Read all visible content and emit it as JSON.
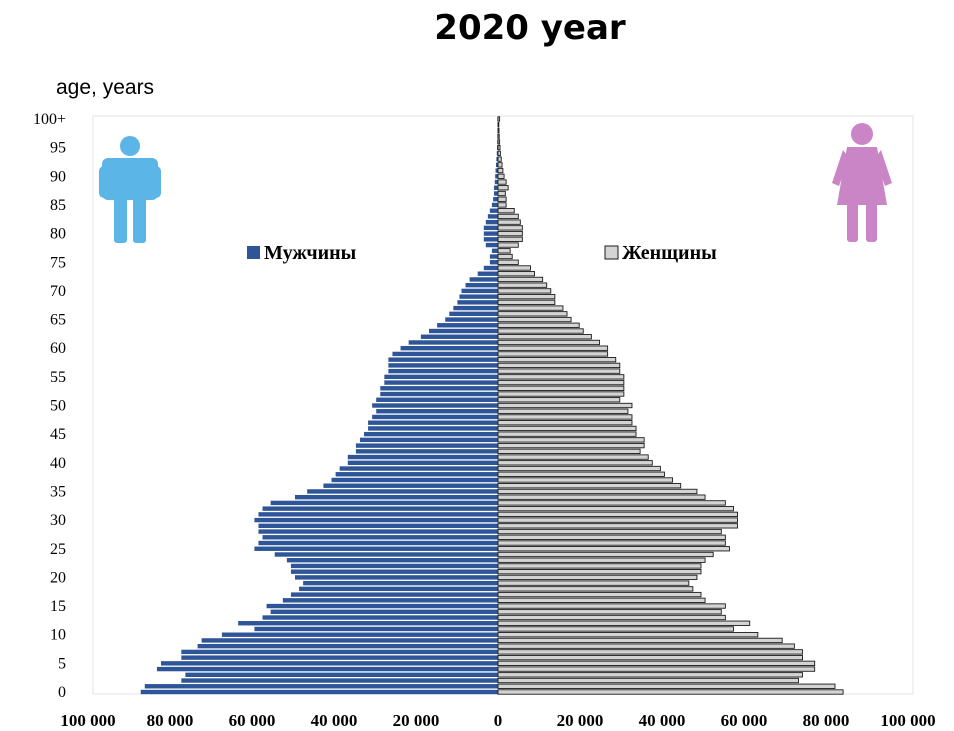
{
  "title": "2020 year",
  "colors": {
    "male": "#2e5597",
    "female": "#d4d4d4",
    "female_stroke": "#1a1a1a",
    "male_icon": "#5bb5e6",
    "female_icon": "#c985c5"
  },
  "icons": {
    "male": "man-icon",
    "female": "woman-icon"
  },
  "chart_data": {
    "type": "bar",
    "orientation": "horizontal-population-pyramid",
    "title": "2020 year",
    "ylabel": "age, years",
    "xlabel": "",
    "legend_position": "top, inside plot",
    "grid": false,
    "xlim": [
      -100000,
      100000
    ],
    "x_tick_labels": [
      "100 000",
      "80 000",
      "60 000",
      "40 000",
      "20 000",
      "0",
      "20 000",
      "40 000",
      "60 000",
      "80 000",
      "100 000"
    ],
    "y_tick_labels": [
      "0",
      "5",
      "10",
      "15",
      "20",
      "25",
      "30",
      "35",
      "40",
      "45",
      "50",
      "55",
      "60",
      "65",
      "70",
      "75",
      "80",
      "85",
      "90",
      "95",
      "100+"
    ],
    "ages": [
      0,
      1,
      2,
      3,
      4,
      5,
      6,
      7,
      8,
      9,
      10,
      11,
      12,
      13,
      14,
      15,
      16,
      17,
      18,
      19,
      20,
      21,
      22,
      23,
      24,
      25,
      26,
      27,
      28,
      29,
      30,
      31,
      32,
      33,
      34,
      35,
      36,
      37,
      38,
      39,
      40,
      41,
      42,
      43,
      44,
      45,
      46,
      47,
      48,
      49,
      50,
      51,
      52,
      53,
      54,
      55,
      56,
      57,
      58,
      59,
      60,
      61,
      62,
      63,
      64,
      65,
      66,
      67,
      68,
      69,
      70,
      71,
      72,
      73,
      74,
      75,
      76,
      77,
      78,
      79,
      80,
      81,
      82,
      83,
      84,
      85,
      86,
      87,
      88,
      89,
      90,
      91,
      92,
      93,
      94,
      95,
      96,
      97,
      98,
      99,
      100
    ],
    "series": [
      {
        "name": "Мужчины",
        "values": [
          88000,
          87000,
          78000,
          77000,
          84000,
          83000,
          78000,
          78000,
          74000,
          73000,
          68000,
          60000,
          64000,
          58000,
          56000,
          57000,
          53000,
          51000,
          49000,
          48000,
          50000,
          51000,
          51000,
          52000,
          55000,
          60000,
          59000,
          58000,
          59000,
          59000,
          60000,
          59000,
          58000,
          56000,
          50000,
          47000,
          43000,
          41000,
          40000,
          39000,
          37000,
          37000,
          35000,
          35000,
          34000,
          33000,
          32000,
          32000,
          31000,
          30000,
          31000,
          30000,
          29000,
          29000,
          28000,
          28000,
          27000,
          27000,
          27000,
          26000,
          24000,
          22000,
          19000,
          17000,
          15000,
          13000,
          12000,
          11000,
          10000,
          9500,
          9000,
          8000,
          7000,
          5000,
          3500,
          2000,
          2000,
          1500,
          3000,
          3500,
          3500,
          3500,
          3000,
          2500,
          2000,
          1500,
          1200,
          1000,
          1000,
          800,
          700,
          600,
          500,
          400,
          300,
          250,
          200,
          150,
          100,
          80,
          150
        ]
      },
      {
        "name": "Женщины",
        "values": [
          85000,
          83000,
          74000,
          75000,
          78000,
          78000,
          75000,
          75000,
          73000,
          70000,
          64000,
          58000,
          62000,
          56000,
          55000,
          56000,
          51000,
          50000,
          48000,
          47000,
          49000,
          50000,
          50000,
          51000,
          53000,
          57000,
          56000,
          56000,
          55000,
          59000,
          59000,
          59000,
          58000,
          56000,
          51000,
          49000,
          45000,
          43000,
          41000,
          40000,
          38000,
          37000,
          35000,
          36000,
          36000,
          34000,
          34000,
          33000,
          33000,
          32000,
          33000,
          30000,
          31000,
          31000,
          31000,
          31000,
          30000,
          30000,
          29000,
          27000,
          27000,
          25000,
          23000,
          21000,
          20000,
          18000,
          17000,
          16000,
          14000,
          14000,
          13000,
          12000,
          11000,
          9000,
          8000,
          5000,
          3500,
          3000,
          5000,
          6000,
          6000,
          6000,
          5500,
          5000,
          4000,
          2000,
          2000,
          1800,
          2500,
          2000,
          1500,
          1200,
          1000,
          800,
          600,
          500,
          400,
          300,
          250,
          200,
          400
        ]
      }
    ]
  }
}
